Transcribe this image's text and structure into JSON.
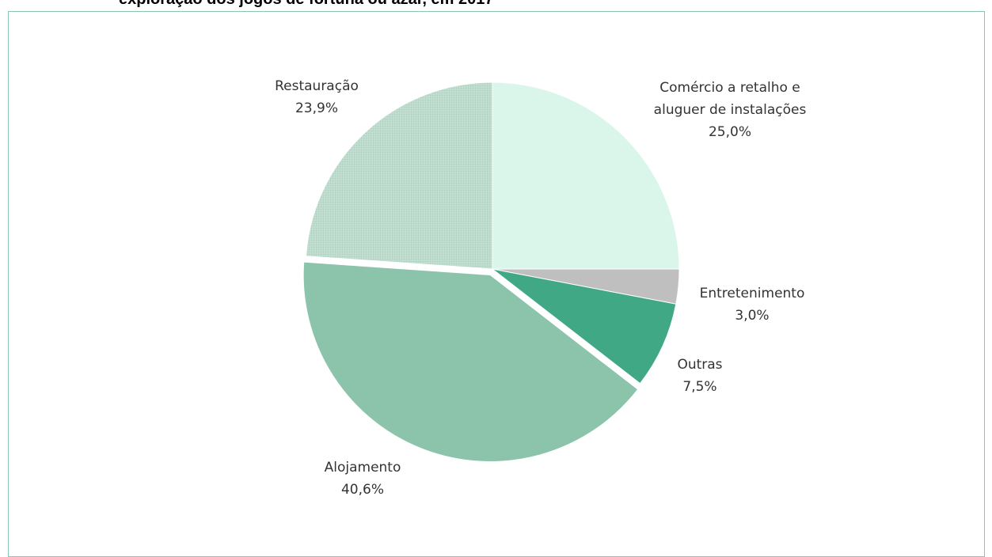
{
  "chart_data": {
    "type": "pie",
    "title": "exploração dos jogos de fortuna ou azar, em 2017",
    "slices": [
      {
        "label": [
          "Comércio a retalho e",
          "aluguer de instalações"
        ],
        "value": 25.0,
        "value_label": "25,0%",
        "color": "#daf6ea",
        "anchor": "middle"
      },
      {
        "label": [
          "Entretenimento"
        ],
        "value": 3.0,
        "value_label": "3,0%",
        "color": "#bfbfbf",
        "anchor": "middle"
      },
      {
        "label": [
          "Outras"
        ],
        "value": 7.5,
        "value_label": "7,5%",
        "color": "#40a884",
        "anchor": "middle"
      },
      {
        "label": [
          "Alojamento"
        ],
        "value": 40.6,
        "value_label": "40,6%",
        "color": "#8bc4ab",
        "anchor": "middle",
        "exploded": true
      },
      {
        "label": [
          "Restauração"
        ],
        "value": 23.9,
        "value_label": "23,9%",
        "color": "#bddbcd",
        "anchor": "middle",
        "pattern": "dots"
      }
    ],
    "start_angle_deg": 0,
    "direction": "clockwise",
    "legend": "none"
  }
}
